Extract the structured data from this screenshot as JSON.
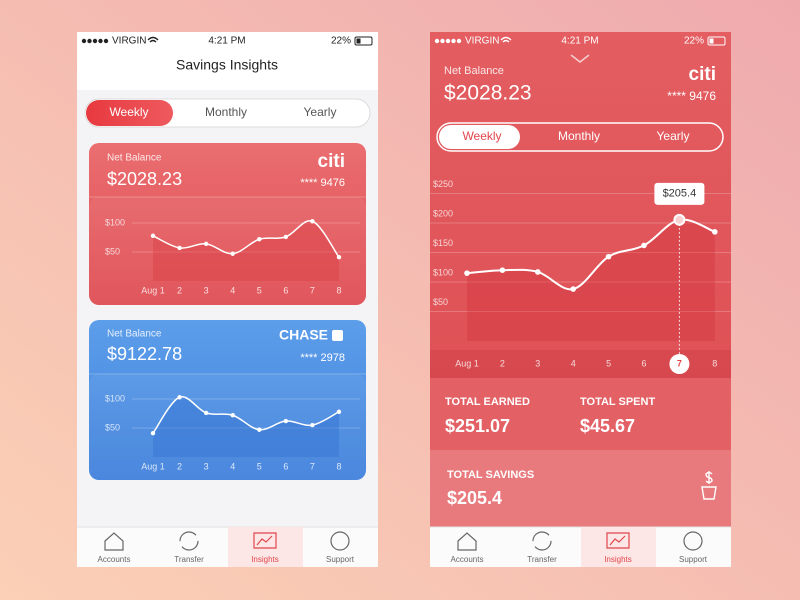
{
  "left_screen": {
    "status": {
      "carrier": "VIRGIN",
      "time": "4:21 PM",
      "battery": "22%"
    },
    "title": "Savings Insights",
    "tabs": [
      "Weekly",
      "Monthly",
      "Yearly"
    ],
    "cards": [
      {
        "label": "Net Balance",
        "balance": "$2028.23",
        "bank": "citi",
        "account": "**** 9476",
        "chart": {
          "type": "line",
          "categories": [
            "Aug 1",
            "2",
            "3",
            "4",
            "5",
            "6",
            "7",
            "8"
          ],
          "values": [
            78,
            57,
            64,
            47,
            72,
            76,
            103,
            41
          ],
          "color": "#ffffff",
          "ylim": [
            0,
            150
          ],
          "yticks": [
            {
              "value": 50,
              "label": "$50"
            },
            {
              "value": 100,
              "label": "$100"
            }
          ]
        }
      },
      {
        "label": "Net Balance",
        "balance": "$9122.78",
        "bank": "CHASE",
        "account": "**** 2978",
        "chart": {
          "type": "line",
          "categories": [
            "Aug 1",
            "2",
            "3",
            "4",
            "5",
            "6",
            "7",
            "8"
          ],
          "values": [
            41,
            103,
            76,
            72,
            47,
            62,
            55,
            78
          ],
          "color": "#ffffff",
          "ylim": [
            0,
            150
          ],
          "yticks": [
            {
              "value": 50,
              "label": "$50"
            },
            {
              "value": 100,
              "label": "$100"
            }
          ]
        }
      }
    ],
    "nav": [
      "Accounts",
      "Transfer",
      "Insights",
      "Support"
    ]
  },
  "right_screen": {
    "status": {
      "carrier": "VIRGIN",
      "time": "4:21 PM",
      "battery": "22%"
    },
    "label": "Net Balance",
    "balance": "$2028.23",
    "bank": "citi",
    "account": "**** 9476",
    "tabs": [
      "Weekly",
      "Monthly",
      "Yearly"
    ],
    "chart": {
      "type": "line",
      "categories": [
        "Aug 1",
        "2",
        "3",
        "4",
        "5",
        "6",
        "7",
        "8"
      ],
      "values": [
        115,
        120,
        117,
        88,
        143,
        162,
        205.4,
        185
      ],
      "value_labels": [
        null,
        null,
        null,
        null,
        null,
        null,
        "$205.4",
        null
      ],
      "color": "#ffffff",
      "ylim": [
        0,
        300
      ],
      "yticks": [
        {
          "value": 50,
          "label": "$50"
        },
        {
          "value": 100,
          "label": "$100"
        },
        {
          "value": 150,
          "label": "$150"
        },
        {
          "value": 200,
          "label": "$200"
        },
        {
          "value": 250,
          "label": "$250"
        }
      ]
    },
    "totals": {
      "earned_label": "TOTAL EARNED",
      "earned": "$251.07",
      "spent_label": "TOTAL SPENT",
      "spent": "$45.67",
      "savings_label": "TOTAL SAVINGS",
      "savings": "$205.4"
    },
    "nav": [
      "Accounts",
      "Transfer",
      "Insights",
      "Support"
    ]
  }
}
